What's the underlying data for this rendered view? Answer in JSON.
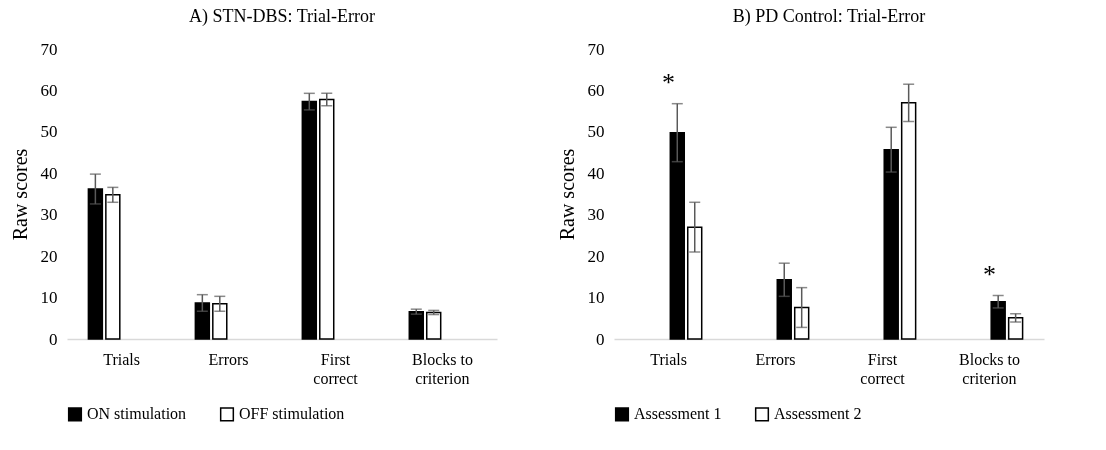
{
  "chart_data": [
    {
      "type": "bar",
      "title": "A) STN-DBS: Trial-Error",
      "ylabel": "Raw scores",
      "categories": [
        "Trials",
        "Errors",
        "First correct",
        "Blocks to criterion"
      ],
      "ylim": [
        0,
        70
      ],
      "yticks": [
        0,
        10,
        20,
        30,
        40,
        50,
        60,
        70
      ],
      "legend": "bottom",
      "series": [
        {
          "name": "ON stimulation",
          "color": "#000000",
          "values": [
            36.2,
            8.7,
            57.3,
            6.6
          ],
          "errors": [
            3.6,
            2,
            2,
            0.6
          ]
        },
        {
          "name": "OFF stimulation",
          "color": "#ffffff",
          "values": [
            34.8,
            8.5,
            57.8,
            6.4
          ],
          "errors": [
            1.8,
            1.8,
            1.5,
            0.5
          ]
        }
      ]
    },
    {
      "type": "bar",
      "title": "B) PD Control: Trial-Error",
      "ylabel": "Raw scores",
      "categories": [
        "Trials",
        "Errors",
        "First correct",
        "Blocks to criterion"
      ],
      "ylim": [
        0,
        70
      ],
      "yticks": [
        0,
        10,
        20,
        30,
        40,
        50,
        60,
        70
      ],
      "legend": "bottom",
      "annotations": [
        {
          "text": "*",
          "x": "Trials",
          "y": 56.8
        },
        {
          "text": "*",
          "x": "Blocks to criterion",
          "y": 10.5
        }
      ],
      "series": [
        {
          "name": "Assessment 1",
          "color": "#000000",
          "values": [
            49.8,
            14.3,
            45.7,
            9
          ],
          "errors": [
            7,
            4,
            5.4,
            1.5
          ]
        },
        {
          "name": "Assessment 2",
          "color": "#ffffff",
          "values": [
            27,
            7.6,
            57,
            5.1
          ],
          "errors": [
            6,
            4.8,
            4.5,
            1
          ]
        }
      ]
    }
  ]
}
